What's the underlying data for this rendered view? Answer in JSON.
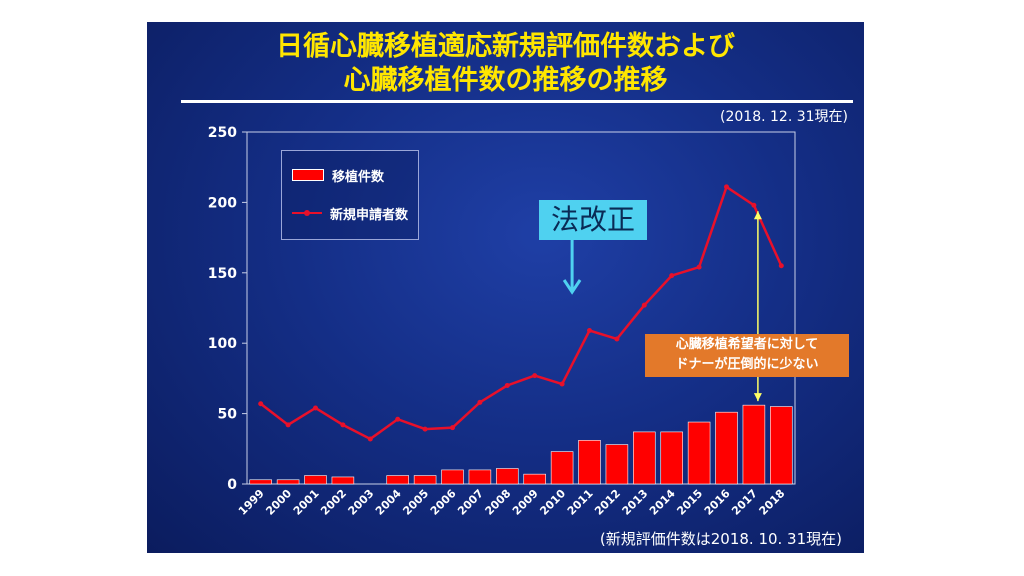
{
  "slide": {
    "title_line1": "日循心臓移植適応新規評価件数および",
    "title_line2": "心臓移植件数の推移の推移",
    "as_of": "(2018. 12. 31現在)",
    "footnote": "(新規評価件数は2018. 10. 31現在)"
  },
  "annotations": {
    "law_change": "法改正",
    "donor_line1": "心臓移植希望者に対して",
    "donor_line2": "ドナーが圧倒的に少ない"
  },
  "colors": {
    "bar": "#ff0000",
    "line": "#e8102a",
    "title": "#ffe600",
    "law_box": "#4fd1f0",
    "donor_box": "#e3792a",
    "arrow_law": "#4fd1f0",
    "arrow_gap": "#ffff66"
  },
  "chart_data": {
    "type": "bar",
    "categories": [
      "1999",
      "2000",
      "2001",
      "2002",
      "2003",
      "2004",
      "2005",
      "2006",
      "2007",
      "2008",
      "2009",
      "2010",
      "2011",
      "2012",
      "2013",
      "2014",
      "2015",
      "2016",
      "2017",
      "2018"
    ],
    "series": [
      {
        "name": "移植件数",
        "type": "bar",
        "values": [
          3,
          3,
          6,
          5,
          0,
          6,
          6,
          10,
          10,
          11,
          7,
          23,
          31,
          28,
          37,
          37,
          44,
          51,
          56,
          55
        ]
      },
      {
        "name": "新規申請者数",
        "type": "line",
        "values": [
          57,
          42,
          54,
          42,
          32,
          46,
          39,
          40,
          58,
          70,
          77,
          71,
          109,
          103,
          127,
          148,
          154,
          211,
          198,
          155
        ]
      }
    ],
    "yticks": [
      0,
      50,
      100,
      150,
      200,
      250
    ],
    "ylim": [
      0,
      250
    ],
    "legend": "top-left",
    "grid": false
  }
}
